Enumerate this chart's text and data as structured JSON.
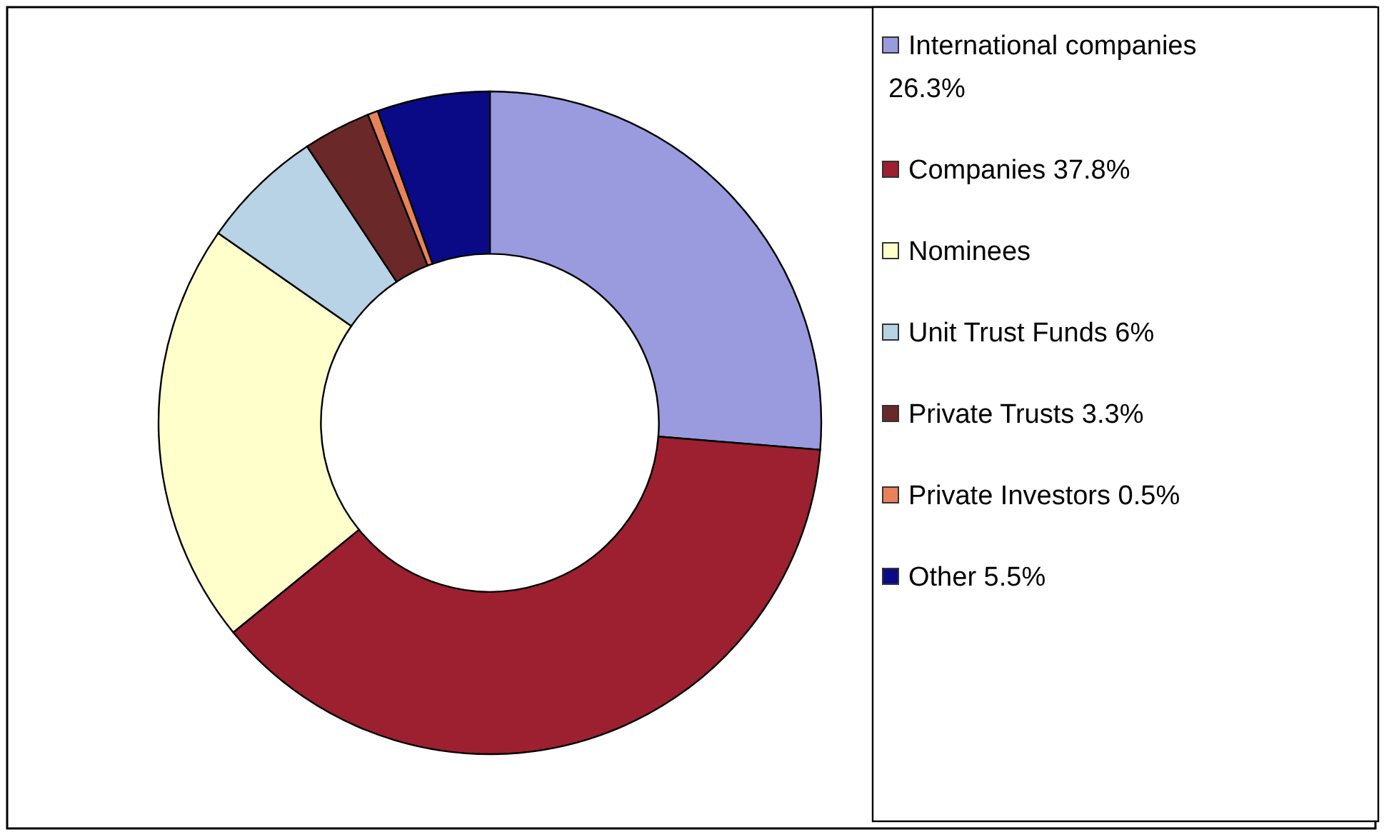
{
  "chart_data": {
    "type": "donut",
    "categories": [
      "International companies 26.3%",
      "Companies 37.8%",
      "Nominees",
      "Unit Trust Funds 6%",
      "Private Trusts 3.3%",
      "Private Investors 0.5%",
      "Other 5.5%"
    ],
    "values": [
      26.3,
      37.8,
      20.6,
      6,
      3.3,
      0.5,
      5.5
    ],
    "colors": [
      "#9a9ade",
      "#9c2030",
      "#ffffcc",
      "#b8d2e6",
      "#6a2828",
      "#e8825a",
      "#0a0a86"
    ],
    "legend": "right"
  }
}
